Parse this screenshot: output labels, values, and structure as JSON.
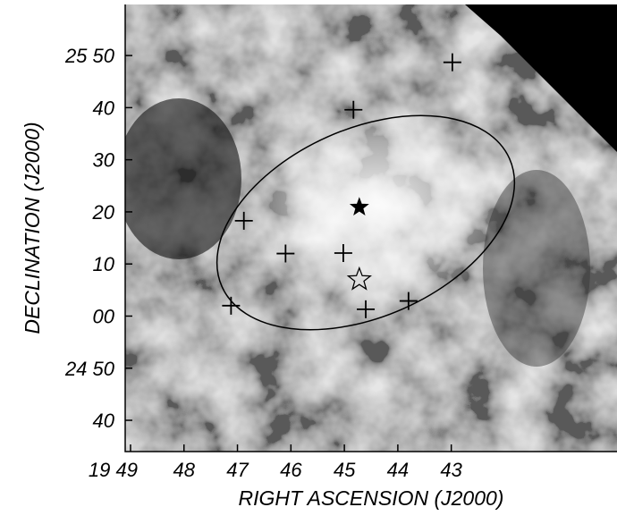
{
  "chart_data": {
    "type": "image",
    "x_label": "RIGHT ASCENSION (J2000)",
    "y_label": "DECLINATION (J2000)",
    "xlim": [
      49.1,
      39.9
    ],
    "ylim": [
      34,
      119.8
    ],
    "xticks": [
      {
        "value": 49,
        "label": "19 49"
      },
      48,
      47,
      46,
      45,
      44,
      43
    ],
    "yticks": [
      40,
      {
        "value": 50,
        "label": "24 50"
      },
      {
        "value": 60,
        "label": "00"
      },
      {
        "value": 70,
        "label": "10"
      },
      {
        "value": 80,
        "label": "20"
      },
      {
        "value": 90,
        "label": "30"
      },
      {
        "value": 100,
        "label": "40"
      },
      {
        "value": 110,
        "label": "25 50"
      }
    ],
    "crosses": {
      "x": [
        42.98,
        44.83,
        46.88,
        46.1,
        45.02,
        47.12,
        44.6,
        43.8
      ],
      "y": [
        108.7,
        99.6,
        78.3,
        72.0,
        72.1,
        62.0,
        61.3,
        62.9
      ]
    },
    "filled_stars": {
      "x": [
        44.72
      ],
      "y": [
        80.9
      ]
    },
    "open_stars": {
      "x": [
        44.72
      ],
      "y": [
        67.0
      ]
    }
  }
}
